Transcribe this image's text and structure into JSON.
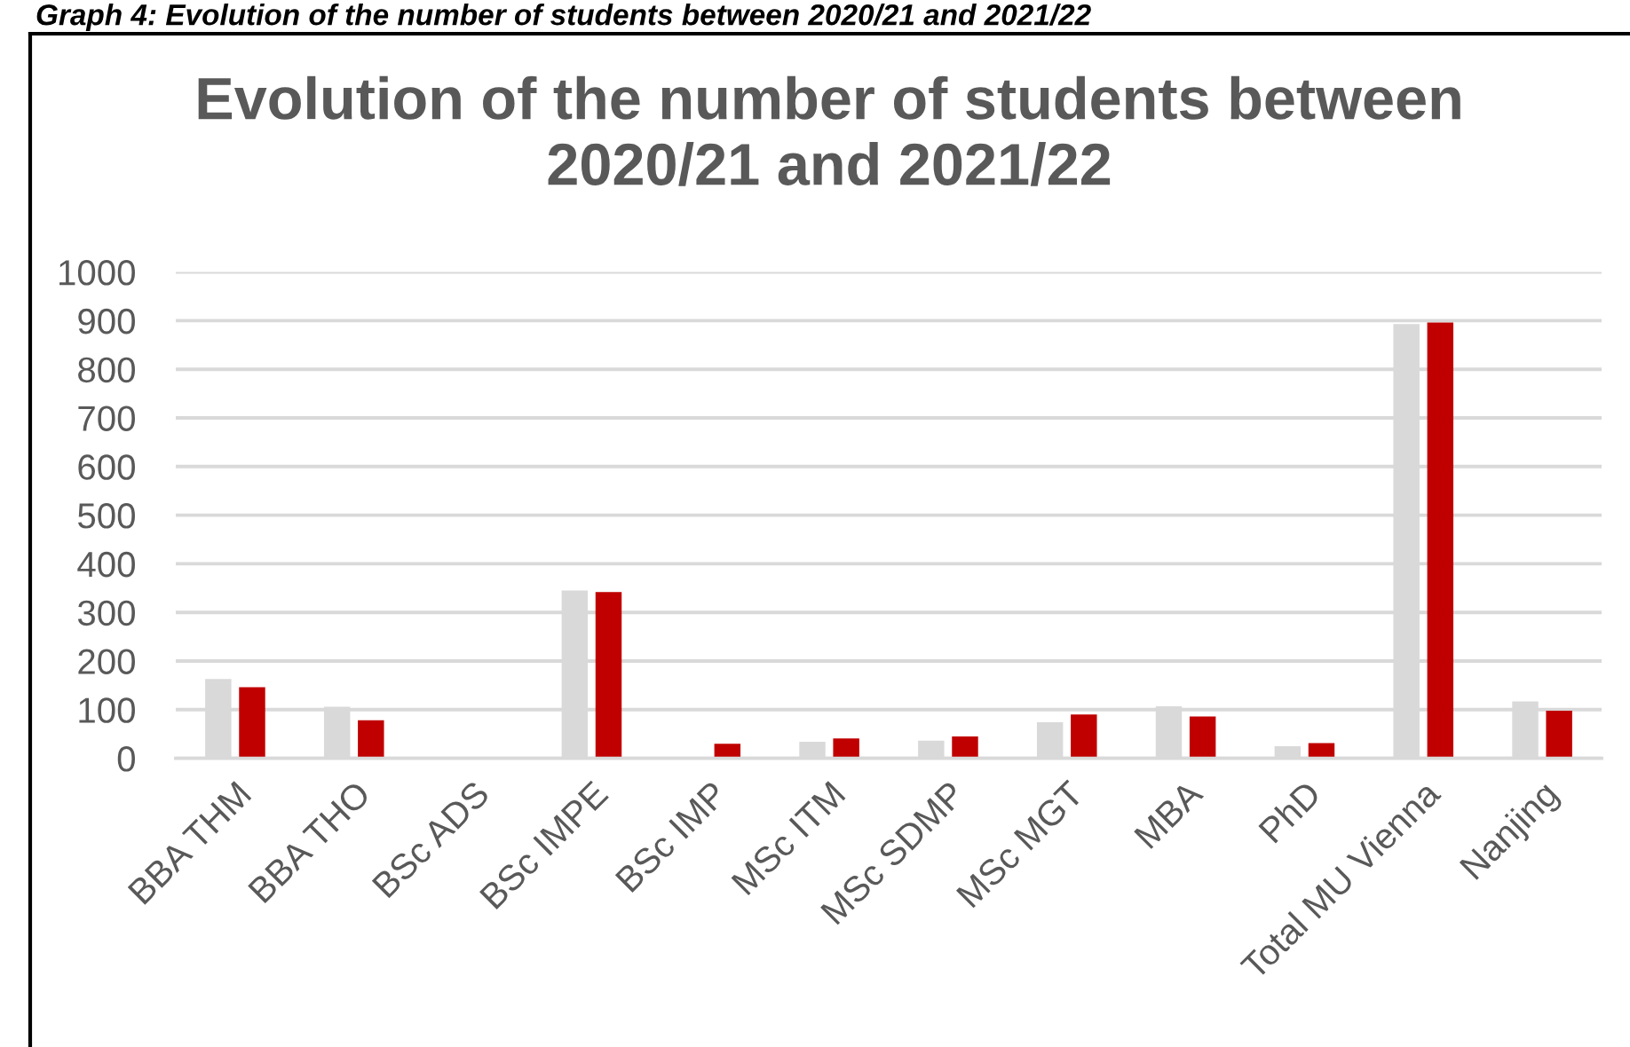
{
  "chart_data": {
    "type": "bar",
    "title": "Evolution of the number of students between 2020/21 and 2021/22",
    "annotations": [
      "Graph 4: Evolution of the number of students between 2020/21 and 2021/22"
    ],
    "categories": [
      "BBA THM",
      "BBA THO",
      "BSc ADS",
      "BSc IMPE",
      "BSc IMP",
      "MSc ITM",
      "MSc SDMP",
      "MSc MGT",
      "MBA",
      "PhD",
      "Total MU Vienna",
      "Nanjing"
    ],
    "series": [
      {
        "color": "#d9d9d9",
        "values": [
          163,
          106,
          3,
          345,
          0,
          34,
          36,
          74,
          107,
          25,
          893,
          117
        ]
      },
      {
        "color": "#c00000",
        "values": [
          146,
          78,
          0,
          342,
          30,
          41,
          45,
          90,
          86,
          31,
          896,
          98
        ]
      }
    ],
    "ylim": [
      0,
      1000
    ],
    "yticks": [
      0,
      100,
      200,
      300,
      400,
      500,
      600,
      700,
      800,
      900,
      1000
    ],
    "grid": "y"
  }
}
